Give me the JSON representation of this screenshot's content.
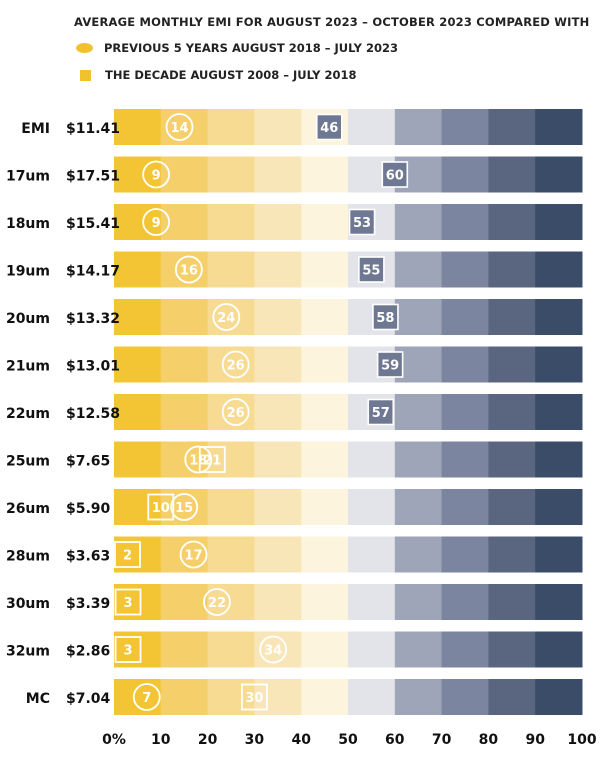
{
  "title": "AVERAGE MONTHLY EMI FOR AUGUST 2023 – OCTOBER 2023 COMPARED WITH",
  "legend": {
    "circle_label": "PREVIOUS 5 YEARS AUGUST 2018 – JULY 2023",
    "square_label": "THE DECADE AUGUST 2008 – JULY 2018"
  },
  "chart_data": {
    "type": "bar",
    "title": "AVERAGE MONTHLY EMI FOR AUGUST 2023 – OCTOBER 2023 COMPARED WITH",
    "xlim": [
      0,
      100
    ],
    "x_ticks": [
      "0%",
      "10",
      "20",
      "30",
      "40",
      "50",
      "60",
      "70",
      "80",
      "90",
      "100"
    ],
    "band_colors": [
      "#f3c535",
      "#f5d06a",
      "#f7db93",
      "#f9e6b8",
      "#fcf4dc",
      "#e3e4e9",
      "#9fa5b9",
      "#7c859f",
      "#5a6680",
      "#3b4c68"
    ],
    "marker_color": "#f2c12e",
    "dark_marker_color": "#6e7893",
    "categories": [
      "EMI",
      "17um",
      "18um",
      "19um",
      "20um",
      "21um",
      "22um",
      "25um",
      "26um",
      "28um",
      "30um",
      "32um",
      "MC"
    ],
    "prices": [
      "$11.41",
      "$17.51",
      "$15.41",
      "$14.17",
      "$13.32",
      "$13.01",
      "$12.58",
      "$7.65",
      "$5.90",
      "$3.63",
      "$3.39",
      "$2.86",
      "$7.04"
    ],
    "series": [
      {
        "name": "PREVIOUS 5 YEARS AUGUST 2018 – JULY 2023",
        "marker": "circle",
        "values": [
          14,
          9,
          9,
          16,
          24,
          26,
          26,
          18,
          15,
          17,
          22,
          34,
          7
        ]
      },
      {
        "name": "THE DECADE AUGUST 2008 – JULY 2018",
        "marker": "square",
        "values": [
          46,
          60,
          53,
          55,
          58,
          59,
          57,
          21,
          10,
          2,
          3,
          3,
          30
        ]
      }
    ]
  }
}
